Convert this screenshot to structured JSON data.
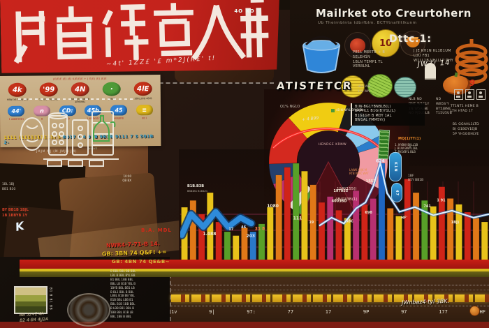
{
  "banner": {
    "script_note": "~4t' 1ZZ£ '£ m*2J(R£' t!"
  },
  "header": {
    "title": "Mailrket oto Creurtohern",
    "subtitle": "Ub Theirnblnta tdbrfblm. BCTYtnafiltlkunm"
  },
  "top_icons": {
    "coin10": "10",
    "note_title": "Dttc.1:",
    "note_col1": [
      "PB1L MEETB + B 5ELEH1N",
      "1BLN TEMP1 TL VERBLNL"
    ],
    "note_col2": [
      "J JE KH1N KL1B1UM LUU FB1",
      "W1LL1B VHLLLP PHY"
    ],
    "handwritten": "JWZ! 14",
    "pumpkin_number": "9"
  },
  "right_column": {
    "col1": [
      "NLB ND",
      "DNE W1S1Y",
      "1N W5AJNE",
      "NO PJ5U5LB"
    ],
    "col2": [
      "ND",
      "WB5S'Y",
      "BT5JBNE",
      "T15U5UB"
    ],
    "block": [
      "TT1NT1 HEME B",
      "LTH HTAD 1T"
    ],
    "numbered": [
      "B1  GGAHL1LTD",
      "B)  G1BOY1EJB",
      "5P  YH1GOHLYE"
    ]
  },
  "chalk": {
    "caption": "JMJM MJ (M JMJM JM)",
    "side_lines": [
      "B1B BB1",
      "1BL B",
      "BBJ 41",
      "B1 BB1"
    ],
    "bottle_caption": "GL1 BL1EM\nWLYLYZ"
  },
  "left_edge": {
    "notes": [
      "1BL 1BJ",
      "BB1 B10"
    ],
    "red_notes": [
      "BY BB1B 1BJL",
      "1B 1BBYB 1Y"
    ]
  },
  "tan_panel": {
    "top_line": "JEJEJE JEJ JEJ KJEJEJE + J EJEJ JEJ JEJE",
    "row1": [
      {
        "label": "4k",
        "color": "#c43018",
        "sub": "HBW JY8 1BHB LYB"
      },
      {
        "label": "'99",
        "color": "#c43018",
        "sub": "1B YB1 FYBJBBLB"
      },
      {
        "label": "4N",
        "color": "#c03420",
        "sub": "BBYL JBYBBBLBB 4BYBMB1"
      },
      {
        "label": "·",
        "color": "#4e9a38",
        "sub": "JBB1B"
      },
      {
        "label": "4lE",
        "color": "#c43018",
        "sub": "1BBLLBYB 4BYB"
      }
    ],
    "row2": [
      {
        "label": "44'",
        "color": "#2f7fd0",
        "sub": "1 4BBBYBYB1"
      },
      {
        "label": "n",
        "color": "#d890a8",
        "sub": "B"
      },
      {
        "label": "CD:",
        "color": "#2f7fd0",
        "sub": "9LB"
      },
      {
        "label": "45b",
        "color": "#2f7fd0",
        "sub": "1 4BJBYB1Y"
      },
      {
        "label": "45",
        "color": "#2f7fd0",
        "sub": "4BBJBYB"
      },
      {
        "label": "≡",
        "color": "#e0b81c",
        "sub": "9B 1"
      }
    ],
    "bottom_yellow": "1111 (1111111111) 1 ",
    "bottom_multi": "B017 L 4 9YB 9B1B 9111 7 5 501B 2-"
  },
  "badge": {
    "label": "B.A. MDL",
    "left_note": "10:00\nQB BX",
    "inner": "4O XO"
  },
  "mid_notes": {
    "red_line": "NWR4-7-71-B 14.",
    "yellow_line": "GB: 3BN 74 Q&F! +="
  },
  "donut_labels": {
    "title": "ATISTETCR",
    "title_side": "H1S WN\n1LS WN",
    "panel_lines": [
      "B(W-BG1YBNBLB(L)",
      "BAPHL1 B1G(B)Y1L(L)",
      "B1G1GH B MDY 1AL",
      "BW1AL FMM5V()"
    ],
    "left_label": "Q1% NG1O",
    "chip_label": "4B KHWYL BYL1YBL",
    "handwritten": "+ 4 B99",
    "center": "HENDGE KRNW",
    "below1": "19AY155()",
    "below2": "4B(033B(1)",
    "side_orange": "LAWK WJK M\nRTB WAK WAT",
    "right_orange": "MQ(1)TT(1)",
    "right_list": [
      "1. NYBW BJJLL1B",
      "J. B1W BWYL1BL",
      "T. BYLYBYL BLB"
    ],
    "capsule1": "K1N",
    "capsule2": "47",
    "chip2": "B1B.B3B",
    "chip2_sub": "BBB4B1  B1B4Z1",
    "right_small": "1BF\nB5Y BB1B"
  },
  "bottom_left": {
    "title": "GB: 4BN 74 QE&B~",
    "list": [
      "B BBL BBL BB BBL",
      "LBL B BBL BYL BB",
      "B1 BBL 1BB BBL",
      "BBL LB B1B YBL B",
      "1BYB BBL BB1 LB",
      "B BL1 BBL B BBL",
      "LBBL B1B BB YBL",
      "B1B BBL LBB B1",
      "BBL B1B 1BB BBL",
      "B LBB BB1 BBL B",
      "1BB BBL B1B LB",
      "BBL 1BB B BBL"
    ],
    "note": "BB 5z+2'4h\nB2 4-B4 4JJ2A"
  },
  "timeline": {
    "numbers": [
      "1v",
      "9|",
      "97:",
      "77",
      "17",
      "9P",
      "97",
      "177",
      "HF"
    ],
    "graffiti": "JWnbaz4·tyl 3BK."
  },
  "chart_data": [
    {
      "type": "pie",
      "donut": true,
      "title": "ATISTETCR",
      "center_label": "HENDGE KRNW",
      "start_angle_deg": -42,
      "legend_position": "right-panel",
      "slices": [
        {
          "label": "seg-yellow",
          "value": 60,
          "color": "#f0cc12"
        },
        {
          "label": "seg-black",
          "value": 15,
          "color": "#1b1b1b"
        },
        {
          "label": "seg-lightblue",
          "value": 30,
          "color": "#8ac9ec"
        },
        {
          "label": "seg-blue",
          "value": 10,
          "color": "#2b7ecb"
        },
        {
          "label": "seg-pink",
          "value": 45,
          "color": "#f09aa2"
        },
        {
          "label": "seg-maroon",
          "value": 40,
          "color": "#5e1322"
        },
        {
          "label": "seg-darkbrown",
          "value": 35,
          "color": "#3a2014"
        },
        {
          "label": "seg-green",
          "value": 20,
          "color": "#4e9a36"
        },
        {
          "label": "seg-white",
          "value": 10,
          "color": "#e6e2d6"
        },
        {
          "label": "seg-magenta",
          "value": 25,
          "color": "#c23272"
        },
        {
          "label": "seg-navy",
          "value": 20,
          "color": "#24406e"
        },
        {
          "label": "seg-red",
          "value": 50,
          "color": "#d4291f"
        }
      ]
    },
    {
      "type": "bar",
      "ylim": [
        0,
        110
      ],
      "grid": true,
      "values": [
        55,
        62,
        48,
        70,
        40,
        30,
        26,
        34,
        30,
        38,
        55,
        88,
        96,
        100,
        92,
        78,
        60,
        66,
        52,
        44,
        72,
        58,
        64,
        100,
        54,
        46,
        84,
        70,
        62,
        56,
        76,
        64,
        58,
        50,
        44,
        40
      ],
      "colors": [
        "#e8c21a",
        "#e07818",
        "#cf2418",
        "#e8c21a",
        "#cf2418",
        "#58a028",
        "#e8c21a",
        "#e07818",
        "#2a78c8",
        "#58a028",
        "#e8c21a",
        "#e07818",
        "#cf2418",
        "#58a028",
        "#e8c21a",
        "#e07818",
        "#cf2418",
        "#b83070",
        "#cf2418",
        "#e8c21a",
        "#b83070",
        "#cf2418",
        "#b83070",
        "#1f66c0",
        "#e07818",
        "#e8c21a",
        "#cf2418",
        "#e07818",
        "#58a028",
        "#e8c21a",
        "#cf2418",
        "#e07818",
        "#e8c21a",
        "#cf2418",
        "#e07818",
        "#e8c21a"
      ],
      "annotations": [
        {
          "text": "1.088",
          "fx": 0.095,
          "fy": 0.7
        },
        {
          "text": "17",
          "fx": 0.165,
          "fy": 0.66,
          "size": 5
        },
        {
          "text": "46",
          "fx": 0.205,
          "fy": 0.64,
          "size": 5,
          "color": "#cfe6ff"
        },
        {
          "text": "203",
          "fx": 0.228,
          "fy": 0.72,
          "color": "#cfe6ff"
        },
        {
          "text": "31 8",
          "fx": 0.258,
          "fy": 0.655,
          "color": "#ff7a4a"
        },
        {
          "text": "1080",
          "fx": 0.3,
          "fy": 0.46
        },
        {
          "text": "111",
          "fx": 0.38,
          "fy": 0.565
        },
        {
          "text": "19",
          "fx": 0.425,
          "fy": 0.6,
          "size": 5
        },
        {
          "text": "197055",
          "fx": 0.52,
          "fy": 0.33,
          "size": 5
        },
        {
          "text": "4003BD",
          "fx": 0.515,
          "fy": 0.415,
          "size": 5
        },
        {
          "text": "BBC",
          "fx": 0.548,
          "fy": 0.59,
          "size": 5
        },
        {
          "text": "698",
          "fx": 0.61,
          "fy": 0.515,
          "size": 5
        },
        {
          "text": "1551",
          "fx": 0.617,
          "fy": 0.245,
          "size": 5
        },
        {
          "text": "624",
          "fx": 0.648,
          "fy": 0.075,
          "color": "#dfeeff"
        },
        {
          "text": "HF'",
          "fx": 0.725,
          "fy": 0.56,
          "size": 5
        },
        {
          "text": "741",
          "fx": 0.8,
          "fy": 0.46,
          "size": 5
        },
        {
          "text": "1 91",
          "fx": 0.845,
          "fy": 0.41,
          "size": 5
        },
        {
          "text": "1BJ)",
          "fx": 0.89,
          "fy": 0.6,
          "size": 5
        }
      ],
      "line_overlay": [
        [
          0.45,
          0.62
        ],
        [
          0.49,
          0.55
        ],
        [
          0.53,
          0.6
        ],
        [
          0.57,
          0.47
        ],
        [
          0.6,
          0.42
        ],
        [
          0.625,
          0.28
        ],
        [
          0.648,
          0.08
        ],
        [
          0.67,
          0.34
        ],
        [
          0.71,
          0.5
        ],
        [
          0.76,
          0.46
        ],
        [
          0.82,
          0.53
        ],
        [
          0.88,
          0.49
        ],
        [
          0.95,
          0.55
        ],
        [
          1.0,
          0.52
        ]
      ],
      "ribbon": [
        [
          0.005,
          0.7
        ],
        [
          0.035,
          0.52
        ],
        [
          0.075,
          0.63
        ],
        [
          0.115,
          0.5
        ],
        [
          0.155,
          0.63
        ],
        [
          0.195,
          0.55
        ],
        [
          0.23,
          0.6
        ]
      ]
    }
  ]
}
